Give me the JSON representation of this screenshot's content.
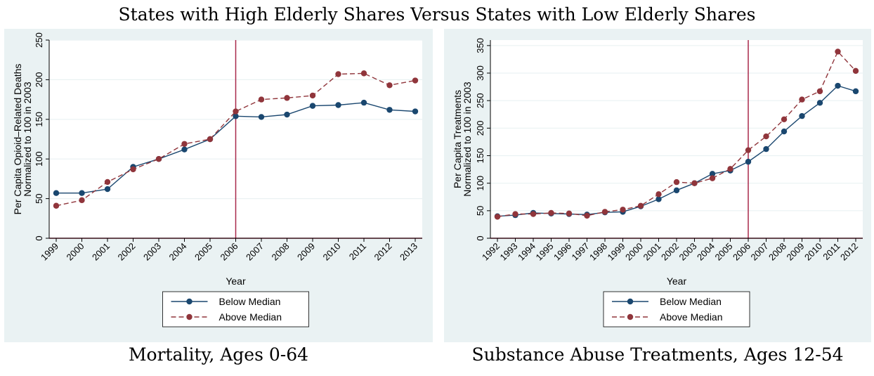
{
  "figure_title": "States with High Elderly Shares Versus States with Low Elderly Shares",
  "colors": {
    "panel_bg": "#eaf2f3",
    "plot_bg": "#ffffff",
    "grid": "#eaf2f3",
    "below": "#1a476f",
    "above": "#90353b",
    "vline": "#a8284a",
    "hline": "#a8284a"
  },
  "chart_data": [
    {
      "type": "line",
      "caption": "Mortality, Ages 0-64",
      "xlabel": "Year",
      "ylabel": [
        "Per Capita Opioid–Related Deaths",
        "Normalized to 100 in 2003"
      ],
      "x": [
        "1999",
        "2000",
        "2001",
        "2002",
        "2003",
        "2004",
        "2005",
        "2006",
        "2007",
        "2008",
        "2009",
        "2010",
        "2011",
        "2012",
        "2013"
      ],
      "yticks": [
        0,
        50,
        100,
        150,
        200,
        250
      ],
      "ylim": [
        0,
        250
      ],
      "vline_at": "2006",
      "hline_at": 0,
      "grid": true,
      "legend_position": "bottom",
      "series": [
        {
          "name": "Below Median",
          "style": "solid",
          "values": [
            57,
            57,
            62,
            90,
            100,
            112,
            125,
            154,
            153,
            156,
            167,
            168,
            171,
            162,
            160
          ]
        },
        {
          "name": "Above Median",
          "style": "dashed",
          "values": [
            41,
            48,
            71,
            87,
            100,
            119,
            125,
            160,
            175,
            177,
            180,
            207,
            208,
            193,
            199
          ]
        }
      ]
    },
    {
      "type": "line",
      "caption": "Substance Abuse Treatments, Ages 12-54",
      "xlabel": "Year",
      "ylabel": [
        "Per Capita Treatments",
        "Normalized to 100 in 2003"
      ],
      "x": [
        "1992",
        "1993",
        "1994",
        "1995",
        "1996",
        "1997",
        "1998",
        "1999",
        "2000",
        "2001",
        "2002",
        "2003",
        "2004",
        "2005",
        "2006",
        "2007",
        "2008",
        "2009",
        "2010",
        "2011",
        "2012"
      ],
      "yticks": [
        0,
        50,
        100,
        150,
        200,
        250,
        300,
        350
      ],
      "ylim": [
        0,
        360
      ],
      "vline_at": "2006",
      "hline_at": 0,
      "grid": true,
      "legend_position": "bottom",
      "series": [
        {
          "name": "Below Median",
          "style": "solid",
          "values": [
            40,
            42,
            46,
            45,
            44,
            43,
            47,
            48,
            58,
            71,
            87,
            100,
            117,
            123,
            139,
            162,
            194,
            222,
            246,
            277,
            267
          ]
        },
        {
          "name": "Above Median",
          "style": "dashed",
          "values": [
            39,
            44,
            44,
            46,
            45,
            41,
            48,
            52,
            59,
            80,
            102,
            100,
            109,
            126,
            160,
            185,
            216,
            252,
            267,
            339,
            304
          ]
        }
      ]
    }
  ]
}
